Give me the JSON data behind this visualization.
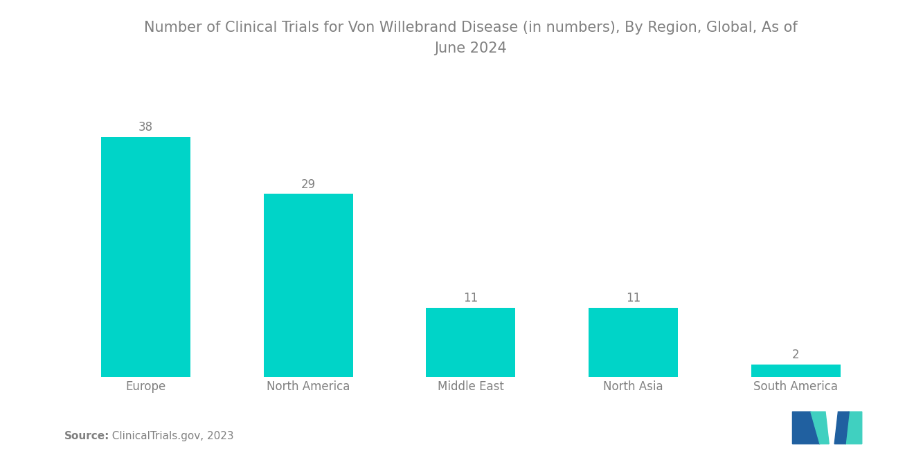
{
  "title": "Number of Clinical Trials for Von Willebrand Disease (in numbers), By Region, Global, As of\nJune 2024",
  "categories": [
    "Europe",
    "North America",
    "Middle East",
    "North Asia",
    "South America"
  ],
  "values": [
    38,
    29,
    11,
    11,
    2
  ],
  "bar_color": "#00D4C8",
  "background_color": "#ffffff",
  "text_color": "#808080",
  "title_fontsize": 15,
  "label_fontsize": 12,
  "value_fontsize": 12,
  "source_bold": "Source:",
  "source_normal": "  ClinicalTrials.gov, 2023",
  "ylim": [
    0,
    48
  ],
  "bar_width": 0.55,
  "logo_dark": "#2060a0",
  "logo_teal": "#40d0c0"
}
